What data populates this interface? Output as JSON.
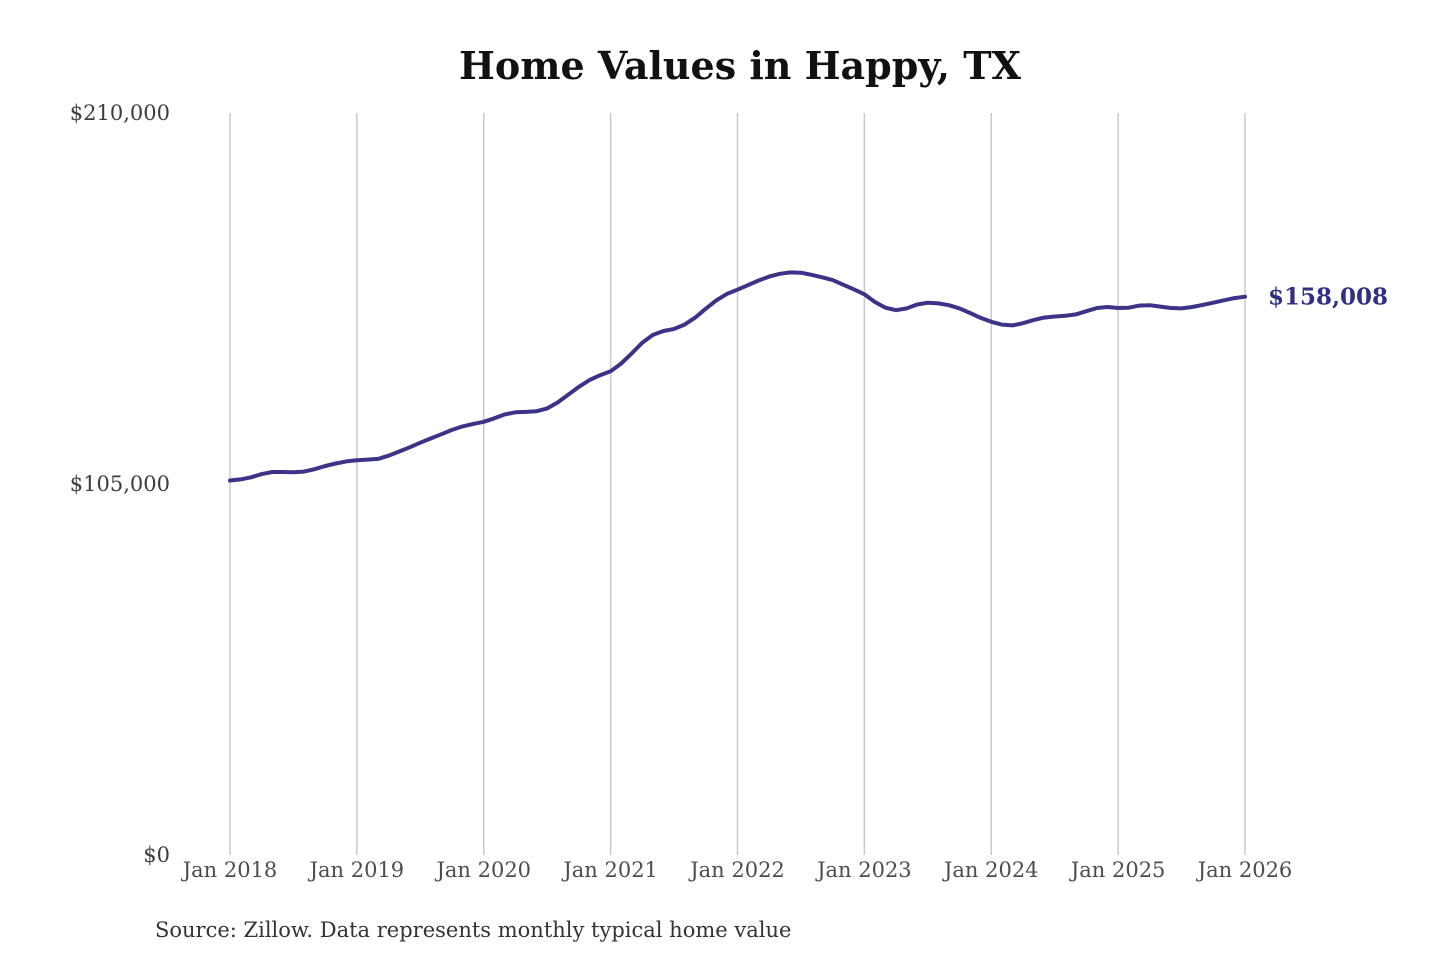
{
  "chart_data": {
    "type": "line",
    "title": "Home Values in Happy, TX",
    "source": "Source: Zillow. Data represents monthly typical home value",
    "end_label": "$158,008",
    "latest_value": 158008,
    "frequency": "monthly",
    "x_start": "Jan 2018",
    "x_end": "Jan 2026",
    "points_per_year": 12,
    "ylim": [
      0,
      210000
    ],
    "grid": "vertical-only",
    "legend": "none",
    "colors": {
      "line": "#3b3388",
      "end_label": "#312e85",
      "gridline": "#c9c9c9"
    },
    "y_ticks": [
      {
        "value": 210000,
        "label": "$210,000"
      },
      {
        "value": 105000,
        "label": "$105,000"
      },
      {
        "value": 0,
        "label": "$0"
      }
    ],
    "x_ticks": [
      "Jan 2018",
      "Jan 2019",
      "Jan 2020",
      "Jan 2021",
      "Jan 2022",
      "Jan 2023",
      "Jan 2024",
      "Jan 2025",
      "Jan 2026"
    ],
    "values": [
      106000,
      106300,
      106900,
      107800,
      108400,
      108400,
      108300,
      108500,
      109200,
      110100,
      110800,
      111400,
      111700,
      111900,
      112100,
      113000,
      114200,
      115400,
      116700,
      117900,
      119100,
      120300,
      121300,
      122000,
      122600,
      123600,
      124700,
      125300,
      125400,
      125600,
      126400,
      128100,
      130300,
      132500,
      134400,
      135800,
      136900,
      139100,
      142000,
      145000,
      147200,
      148300,
      148900,
      150100,
      152100,
      154600,
      157000,
      158800,
      160000,
      161300,
      162600,
      163700,
      164500,
      164900,
      164800,
      164200,
      163500,
      162700,
      161400,
      160100,
      158700,
      156500,
      154900,
      154200,
      154700,
      155800,
      156300,
      156100,
      155600,
      154700,
      153400,
      152000,
      150900,
      150100,
      149900,
      150500,
      151400,
      152100,
      152400,
      152600,
      153000,
      153900,
      154800,
      155100,
      154800,
      154900,
      155500,
      155600,
      155200,
      154800,
      154700,
      155100,
      155700,
      156300,
      157000,
      157600,
      158008
    ]
  }
}
